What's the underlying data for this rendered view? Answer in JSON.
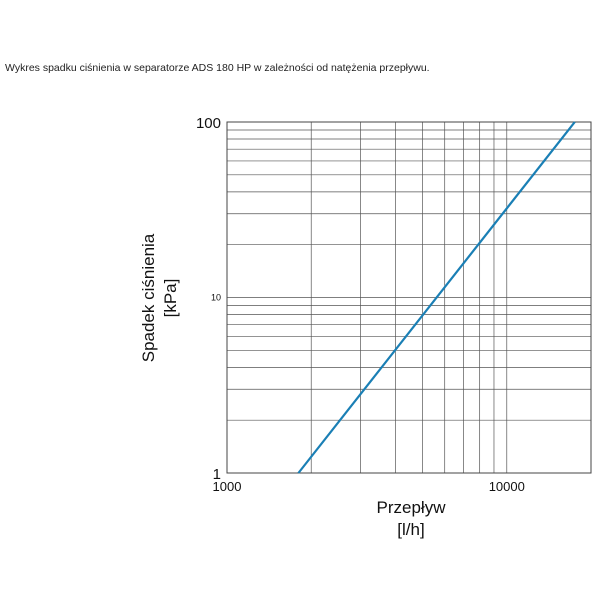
{
  "chart_data": {
    "type": "line",
    "title": "Wykres spadku ciśnienia w separatorze ADS 180 HP w zależności od natężenia przepływu.",
    "xlabel": "Przepływ",
    "xunit": "[l/h]",
    "ylabel": "Spadek ciśnienia",
    "yunit": "[kPa]",
    "xscale": "log",
    "yscale": "log",
    "xlim": [
      1000,
      20000
    ],
    "ylim": [
      1,
      100
    ],
    "x_tick_labels": [
      "1000",
      "10000"
    ],
    "y_tick_labels": [
      "1",
      "10",
      "100"
    ],
    "grid": true,
    "series": [
      {
        "x": [
          1800,
          17500
        ],
        "y": [
          1,
          100
        ],
        "color": "#1a7fb5"
      }
    ]
  }
}
